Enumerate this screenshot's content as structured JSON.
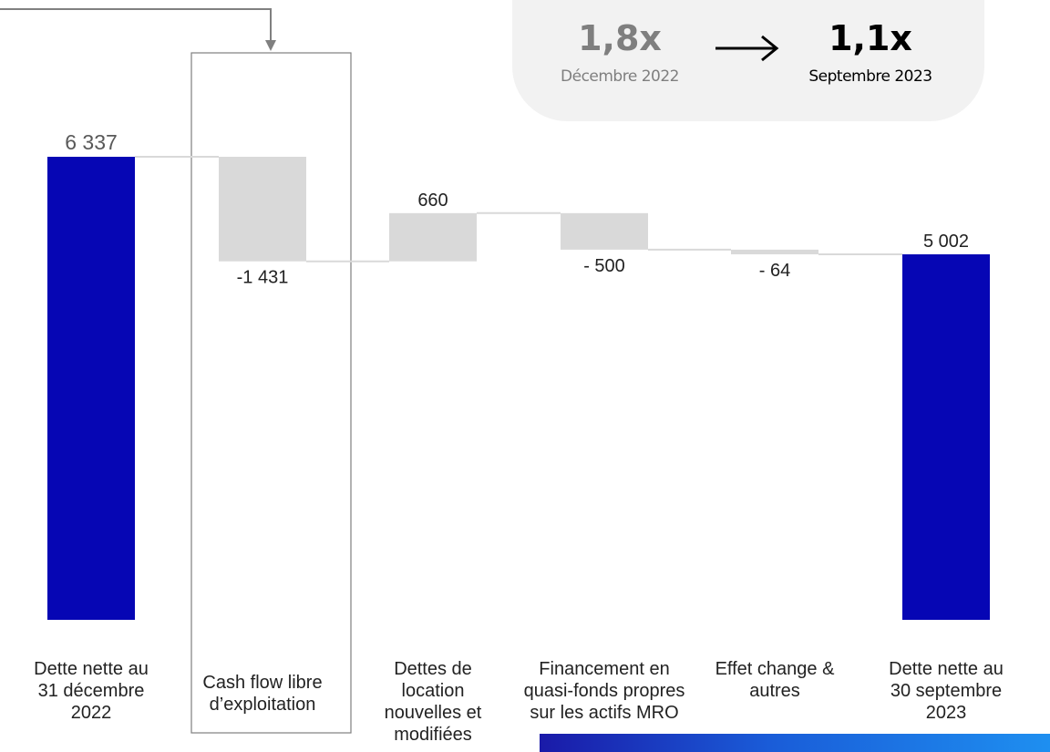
{
  "chart_data": {
    "type": "waterfall",
    "unit_note": "",
    "categories": [
      "Dette nette au 31 décembre 2022",
      "Cash flow libre d’exploitation",
      "Dettes de location nouvelles et modifiées",
      "Financement en quasi-fonds propres sur les actifs MRO",
      "Effet change & autres",
      "Dette nette au 30 septembre 2023"
    ],
    "category_lines": [
      [
        "Dette nette au",
        "31 décembre",
        "2022"
      ],
      [
        "Cash flow libre",
        "d’exploitation"
      ],
      [
        "Dettes de",
        "location",
        "nouvelles et",
        "modifiées"
      ],
      [
        "Financement en",
        "quasi-fonds propres",
        "sur les actifs MRO"
      ],
      [
        "Effet change &",
        "autres"
      ],
      [
        "Dette nette au",
        "30 septembre",
        "2023"
      ]
    ],
    "values": [
      6337,
      -1431,
      660,
      -500,
      -64,
      5002
    ],
    "value_labels": [
      "6 337",
      "-1 431",
      "660",
      "- 500",
      "- 64",
      "5 002"
    ],
    "kinds": [
      "total",
      "delta",
      "delta",
      "delta",
      "delta",
      "total"
    ],
    "ylim": [
      0,
      6337
    ],
    "grid": false,
    "legend": "none",
    "highlighted_category": "Cash flow libre d’exploitation",
    "colors": {
      "total": "#0606b4",
      "delta": "#d9d9d9",
      "connector": "#d9d9d9",
      "highlight_frame": "#7f7f7f",
      "arrow": "#808080"
    }
  },
  "ratio_callout": {
    "from_value": "1,8x",
    "from_label": "Décembre 2022",
    "arrow": "→",
    "to_value": "1,1x",
    "to_label": "Septembre 2023"
  }
}
